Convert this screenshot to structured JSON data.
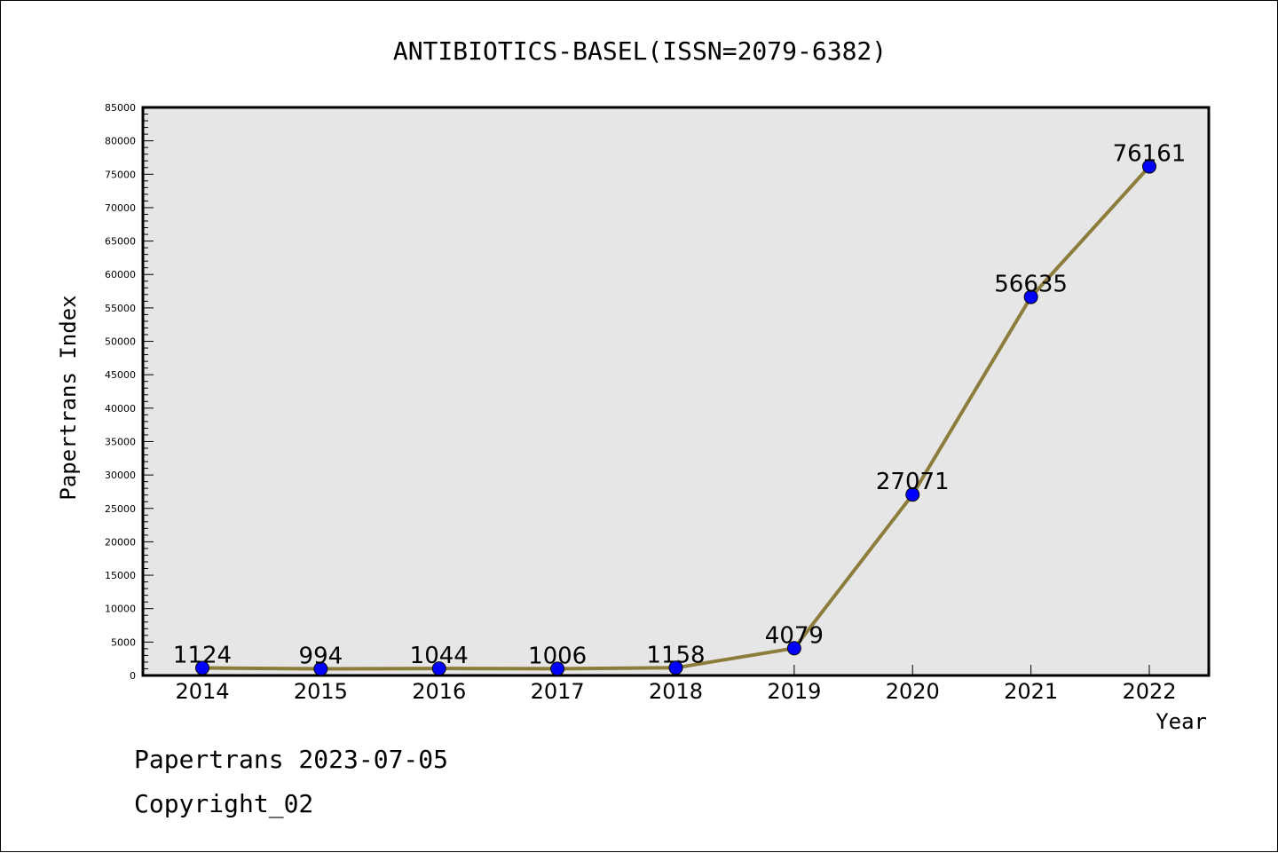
{
  "footer": {
    "line1": "Papertrans 2023-07-05",
    "line2": "Copyright_02"
  },
  "colors": {
    "plot_background": "#e6e6e6",
    "line": "#8c7d3c",
    "marker": "#0000ff"
  },
  "chart_data": {
    "type": "line",
    "title": "ANTIBIOTICS-BASEL(ISSN=2079-6382)",
    "xlabel": "Year",
    "ylabel": "Papertrans Index",
    "categories": [
      "2014",
      "2015",
      "2016",
      "2017",
      "2018",
      "2019",
      "2020",
      "2021",
      "2022"
    ],
    "series": [
      {
        "values": [
          1124,
          994,
          1044,
          1006,
          1158,
          4079,
          27071,
          56635,
          76161
        ]
      }
    ],
    "data_labels": [
      "1124",
      "994",
      "1044",
      "1006",
      "1158",
      "4079",
      "27071",
      "56635",
      "76161"
    ],
    "ylim": [
      0,
      85000
    ],
    "yticks": [
      0,
      5000,
      10000,
      15000,
      20000,
      25000,
      30000,
      35000,
      40000,
      45000,
      50000,
      55000,
      60000,
      65000,
      70000,
      75000,
      80000,
      85000
    ],
    "grid": false,
    "legend": "none"
  }
}
